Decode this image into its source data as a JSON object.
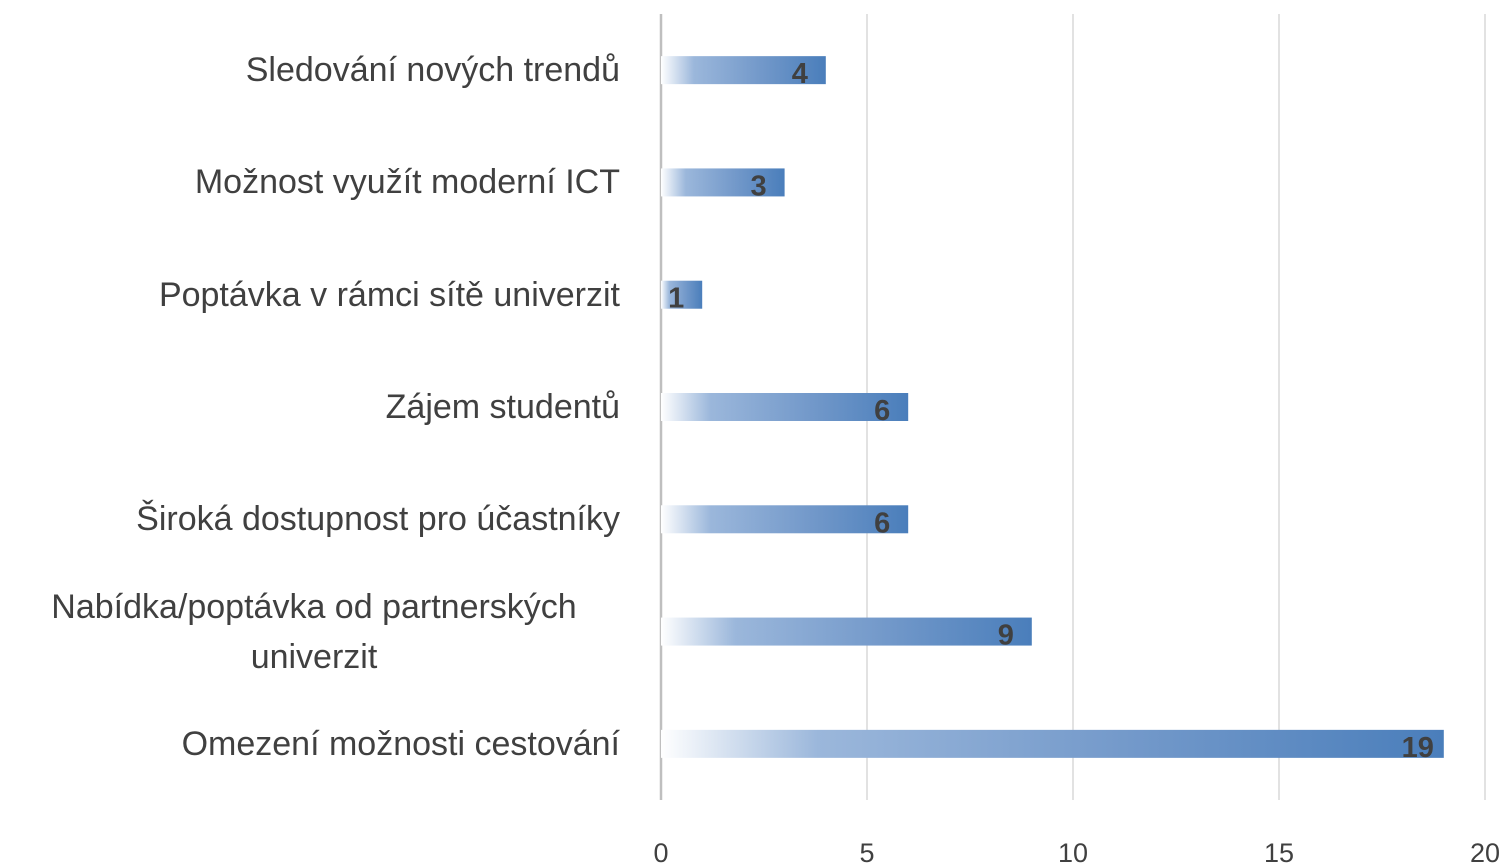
{
  "chart_data": {
    "type": "barh",
    "categories": [
      "Sledování nových trendů",
      "Možnost využít moderní ICT",
      "Poptávka v rámci sítě univerzit",
      "Zájem studentů",
      "Široká dostupnost pro účastníky",
      "Nabídka/poptávka od partnerských univerzit",
      "Omezení možnosti cestování"
    ],
    "values": [
      4,
      3,
      1,
      6,
      6,
      9,
      19
    ],
    "color": "#4a7ebb",
    "xlim": [
      0,
      20
    ],
    "xticks": [
      0,
      5,
      10,
      15,
      20
    ],
    "grid": true
  }
}
